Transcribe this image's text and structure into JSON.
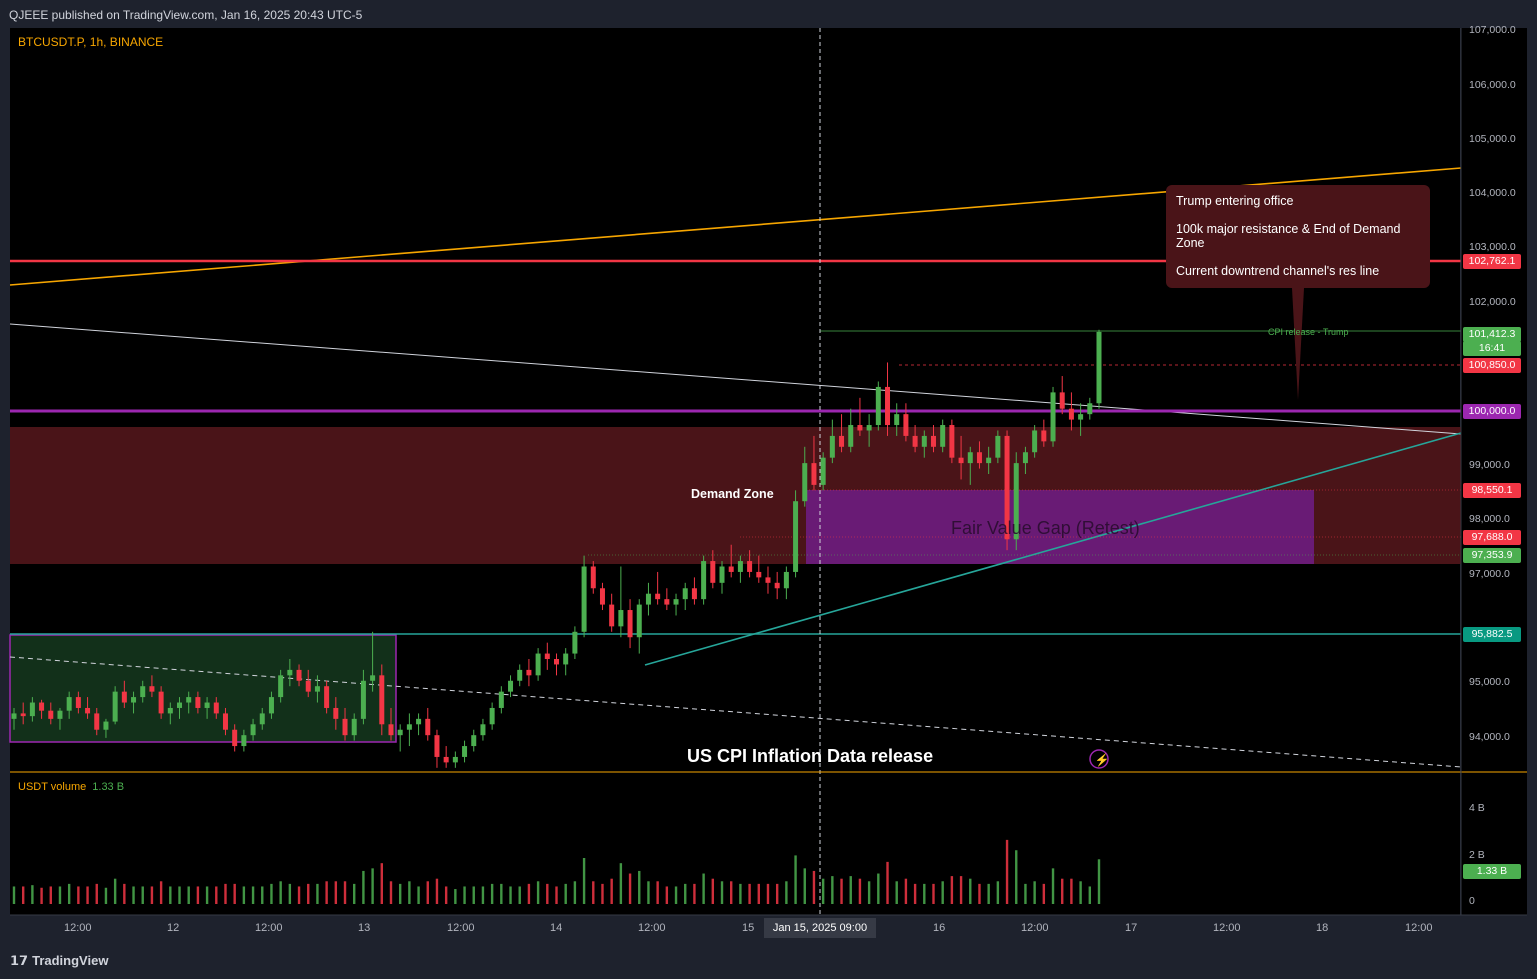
{
  "header": {
    "publisher": "QJEEE published on TradingView.com, Jan 16, 2025 20:43 UTC-5"
  },
  "symbol": {
    "title": "BTCUSDT.P, 1h, BINANCE"
  },
  "volume_indicator": {
    "name": "USDT volume",
    "value": "1.33 B"
  },
  "annotations": {
    "demand_zone": "Demand Zone",
    "fvg": "Fair Value Gap (Retest)",
    "cpi_event": "US CPI Inflation Data release",
    "cpi_line": "CPI release - Trump"
  },
  "popup": {
    "line1": "Trump entering office",
    "line2": "100k major resistance & End of Demand Zone",
    "line3": "Current downtrend channel's res line"
  },
  "price_axis": {
    "labels": [
      "107,000.0",
      "106,000.0",
      "105,000.0",
      "104,000.0",
      "103,000.0",
      "102,000.0",
      "99,000.0",
      "98,000.0",
      "97,000.0",
      "95,000.0",
      "94,000.0"
    ]
  },
  "price_tags": [
    {
      "text": "102,762.1",
      "color": "#f23645"
    },
    {
      "text": "101,412.3",
      "color": "#4caf50"
    },
    {
      "text": "16:41",
      "color": "#4caf50"
    },
    {
      "text": "100,850.0",
      "color": "#f23645"
    },
    {
      "text": "100,000.0",
      "color": "#9c27b0"
    },
    {
      "text": "98,550.1",
      "color": "#f23645"
    },
    {
      "text": "97,688.0",
      "color": "#f23645"
    },
    {
      "text": "97,353.9",
      "color": "#4caf50"
    },
    {
      "text": "95,882.5",
      "color": "#089981"
    }
  ],
  "volume_axis": {
    "labels": [
      "4 B",
      "2 B",
      "0"
    ],
    "current": "1.33 B"
  },
  "time_axis": {
    "labels": [
      "12:00",
      "12",
      "12:00",
      "13",
      "12:00",
      "14",
      "12:00",
      "15",
      "16",
      "12:00",
      "17",
      "12:00",
      "18",
      "12:00"
    ],
    "crosshair": "Jan 15, 2025   09:00"
  },
  "footer": {
    "brand": "TradingView"
  },
  "colors": {
    "up": "#4caf50",
    "down": "#f23645",
    "demand_zone": "#4a1418",
    "fvg": "#6a1b7a",
    "accent_orange": "#f7a600",
    "purple_line": "#9c27b0",
    "teal": "#26a69a"
  },
  "chart_data": {
    "type": "candlestick",
    "symbol": "BTCUSDT.P",
    "interval": "1h",
    "exchange": "BINANCE",
    "ylim": [
      93400,
      107000
    ],
    "levels": {
      "red_resistance": 102762.1,
      "last_price": 101412.3,
      "dashed_high": 100850.0,
      "psych_100k": 100000.0,
      "fvg_top": 98550.1,
      "fvg_mid": 97688.0,
      "fvg_bottom": 97353.9,
      "support_teal": 95882.5
    },
    "candles": [
      [
        94300,
        94500,
        94100,
        94400
      ],
      [
        94400,
        94600,
        94200,
        94350
      ],
      [
        94350,
        94700,
        94250,
        94600
      ],
      [
        94600,
        94650,
        94300,
        94450
      ],
      [
        94450,
        94600,
        94200,
        94300
      ],
      [
        94300,
        94500,
        94100,
        94450
      ],
      [
        94450,
        94800,
        94300,
        94700
      ],
      [
        94700,
        94800,
        94400,
        94500
      ],
      [
        94500,
        94700,
        94300,
        94400
      ],
      [
        94400,
        94500,
        94000,
        94100
      ],
      [
        94100,
        94300,
        93950,
        94250
      ],
      [
        94250,
        94900,
        94200,
        94800
      ],
      [
        94800,
        95000,
        94500,
        94600
      ],
      [
        94600,
        94800,
        94400,
        94700
      ],
      [
        94700,
        95000,
        94600,
        94900
      ],
      [
        94900,
        95100,
        94700,
        94800
      ],
      [
        94800,
        94900,
        94300,
        94400
      ],
      [
        94400,
        94600,
        94200,
        94500
      ],
      [
        94500,
        94700,
        94300,
        94600
      ],
      [
        94600,
        94800,
        94400,
        94700
      ],
      [
        94700,
        94800,
        94400,
        94500
      ],
      [
        94500,
        94700,
        94300,
        94600
      ],
      [
        94600,
        94700,
        94300,
        94400
      ],
      [
        94400,
        94500,
        94000,
        94100
      ],
      [
        94100,
        94200,
        93700,
        93800
      ],
      [
        93800,
        94100,
        93700,
        94000
      ],
      [
        94000,
        94300,
        93900,
        94200
      ],
      [
        94200,
        94500,
        94100,
        94400
      ],
      [
        94400,
        94800,
        94300,
        94700
      ],
      [
        94700,
        95200,
        94600,
        95100
      ],
      [
        95100,
        95400,
        94900,
        95200
      ],
      [
        95200,
        95300,
        94900,
        95000
      ],
      [
        95000,
        95200,
        94700,
        94800
      ],
      [
        94800,
        95100,
        94600,
        94900
      ],
      [
        94900,
        95000,
        94400,
        94500
      ],
      [
        94500,
        94700,
        94100,
        94300
      ],
      [
        94300,
        94500,
        93900,
        94000
      ],
      [
        94000,
        94400,
        93900,
        94300
      ],
      [
        94300,
        95200,
        94200,
        95000
      ],
      [
        95000,
        95900,
        94800,
        95100
      ],
      [
        95100,
        95300,
        94000,
        94200
      ],
      [
        94200,
        94500,
        93900,
        94000
      ],
      [
        94000,
        94200,
        93700,
        94100
      ],
      [
        94100,
        94400,
        93800,
        94200
      ],
      [
        94200,
        94400,
        94000,
        94300
      ],
      [
        94300,
        94500,
        93900,
        94000
      ],
      [
        94000,
        94100,
        93400,
        93600
      ],
      [
        93600,
        93800,
        93400,
        93500
      ],
      [
        93500,
        93700,
        93400,
        93600
      ],
      [
        93600,
        93900,
        93500,
        93800
      ],
      [
        93800,
        94100,
        93700,
        94000
      ],
      [
        94000,
        94300,
        93900,
        94200
      ],
      [
        94200,
        94600,
        94100,
        94500
      ],
      [
        94500,
        94900,
        94400,
        94800
      ],
      [
        94800,
        95100,
        94700,
        95000
      ],
      [
        95000,
        95300,
        94900,
        95200
      ],
      [
        95200,
        95400,
        94900,
        95100
      ],
      [
        95100,
        95600,
        95000,
        95500
      ],
      [
        95500,
        95700,
        95200,
        95400
      ],
      [
        95400,
        95500,
        95100,
        95300
      ],
      [
        95300,
        95600,
        95100,
        95500
      ],
      [
        95500,
        96000,
        95400,
        95900
      ],
      [
        95900,
        97300,
        95800,
        97100
      ],
      [
        97100,
        97200,
        96600,
        96700
      ],
      [
        96700,
        96800,
        96300,
        96400
      ],
      [
        96400,
        96600,
        95900,
        96000
      ],
      [
        96000,
        97100,
        95800,
        96300
      ],
      [
        96300,
        96500,
        95600,
        95800
      ],
      [
        95800,
        96500,
        95500,
        96400
      ],
      [
        96400,
        96800,
        96200,
        96600
      ],
      [
        96600,
        97000,
        96400,
        96500
      ],
      [
        96500,
        96700,
        96300,
        96400
      ],
      [
        96400,
        96600,
        96200,
        96500
      ],
      [
        96500,
        96800,
        96300,
        96700
      ],
      [
        96700,
        96900,
        96400,
        96500
      ],
      [
        96500,
        97300,
        96400,
        97200
      ],
      [
        97200,
        97400,
        96700,
        96800
      ],
      [
        96800,
        97200,
        96600,
        97100
      ],
      [
        97100,
        97500,
        96900,
        97000
      ],
      [
        97000,
        97300,
        96800,
        97200
      ],
      [
        97200,
        97400,
        96900,
        97000
      ],
      [
        97000,
        97300,
        96800,
        96900
      ],
      [
        96900,
        97100,
        96600,
        96800
      ],
      [
        96800,
        97000,
        96500,
        96700
      ],
      [
        96700,
        97100,
        96500,
        97000
      ],
      [
        97000,
        98500,
        96900,
        98300
      ],
      [
        98300,
        99300,
        98200,
        99000
      ],
      [
        99000,
        99500,
        98500,
        98600
      ],
      [
        98600,
        99200,
        98500,
        99100
      ],
      [
        99100,
        99800,
        99000,
        99500
      ],
      [
        99500,
        99900,
        99200,
        99300
      ],
      [
        99300,
        100000,
        99200,
        99700
      ],
      [
        99700,
        100200,
        99500,
        99600
      ],
      [
        99600,
        99900,
        99300,
        99700
      ],
      [
        99700,
        100500,
        99600,
        100400
      ],
      [
        100400,
        100850,
        99500,
        99700
      ],
      [
        99700,
        100100,
        99500,
        99900
      ],
      [
        99900,
        100100,
        99400,
        99500
      ],
      [
        99500,
        99700,
        99200,
        99300
      ],
      [
        99300,
        99600,
        99100,
        99500
      ],
      [
        99500,
        99700,
        99200,
        99300
      ],
      [
        99300,
        99800,
        99200,
        99700
      ],
      [
        99700,
        99800,
        99000,
        99100
      ],
      [
        99100,
        99500,
        98700,
        99000
      ],
      [
        99000,
        99300,
        98600,
        99200
      ],
      [
        99200,
        99400,
        98900,
        99000
      ],
      [
        99000,
        99300,
        98800,
        99100
      ],
      [
        99100,
        99600,
        99000,
        99500
      ],
      [
        99500,
        99600,
        97400,
        97600
      ],
      [
        97600,
        99200,
        97400,
        99000
      ],
      [
        99000,
        99300,
        98800,
        99200
      ],
      [
        99200,
        99700,
        99100,
        99600
      ],
      [
        99600,
        99800,
        99300,
        99400
      ],
      [
        99400,
        100400,
        99300,
        100300
      ],
      [
        100300,
        100600,
        99900,
        100000
      ],
      [
        100000,
        100300,
        99600,
        99800
      ],
      [
        99800,
        100100,
        99500,
        99900
      ],
      [
        99900,
        100200,
        99800,
        100100
      ],
      [
        100100,
        101450,
        100000,
        101412
      ]
    ],
    "volume_ylim": [
      0,
      4.2
    ],
    "volume_unit": "B"
  }
}
